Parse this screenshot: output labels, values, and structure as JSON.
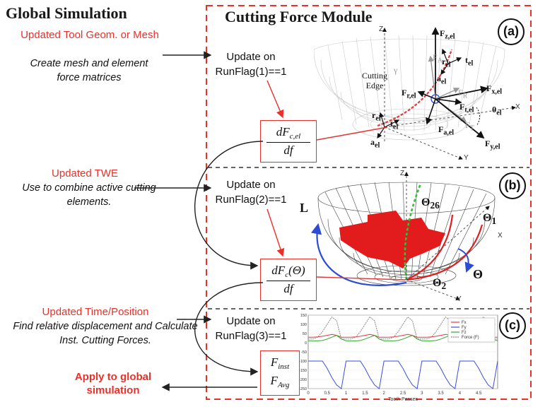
{
  "headers": {
    "global": "Global Simulation",
    "module": "Cutting Force Module"
  },
  "left": {
    "step1_title": "Updated Tool Geom. or Mesh",
    "step1_desc": "Create mesh and element force matrices",
    "step2_title": "Updated TWE",
    "step2_desc": "Use to combine active cutting elements.",
    "step3_title": "Updated Time/Position",
    "step3_desc": "Find relative displacement and Calculate Inst. Cutting Forces.",
    "apply": "Apply to global simulation"
  },
  "updates": [
    {
      "line1": "Update on",
      "line2": "RunFlag(1)==1"
    },
    {
      "line1": "Update on",
      "line2": "RunFlag(2)==1"
    },
    {
      "line1": "Update on",
      "line2": "RunFlag(3)==1"
    }
  ],
  "formulas": {
    "f1_num": "dF",
    "f1_num_sub": "c,el",
    "f1_den": "df",
    "f2_num": "dF",
    "f2_num_sub": "c",
    "f2_num_arg": "(Θ)",
    "f2_den": "df",
    "f3_a": "F",
    "f3_a_sub": "inst",
    "f3_b": "F",
    "f3_b_sub": "Avg"
  },
  "panels": {
    "a": {
      "tag": "(a)",
      "labels": {
        "z": "Z",
        "y_greek": "γ",
        "cutting_edge": "Cutting Edge",
        "fz": "F",
        "fz_sub": "z,el",
        "fa_grey": "F",
        "fa_grey_sub": "A",
        "rel": "r",
        "rel_sub": "el",
        "tel": "t",
        "tel_sub": "el",
        "ael": "a",
        "ael_sub": "el",
        "fr_grey": "F",
        "fr_grey_sub": "R",
        "fx": "F",
        "fx_sub": "x,el",
        "fr": "F",
        "fr_sub": "r,el",
        "ft": "F",
        "ft_sub": "t,el",
        "theta": "θ",
        "theta_sub": "el",
        "ft_grey": "F",
        "ft_grey_sub": "T",
        "fa": "F",
        "fa_sub": "a,el",
        "fy": "F",
        "fy_sub": "y,el",
        "x": "X",
        "y": "Y",
        "r2": "r",
        "r2_sub": "el",
        "t2": "t",
        "t2_sub": "el",
        "a2": "a",
        "a2_sub": "el"
      }
    },
    "b": {
      "tag": "(b)",
      "labels": {
        "z": "Z",
        "theta26": "Θ",
        "theta26_sub": "26",
        "theta1": "Θ",
        "theta1_sub": "1",
        "x": "X",
        "L": "L",
        "theta": "Θ",
        "theta2": "Θ",
        "theta2_sub": "2",
        "y": "Y"
      }
    },
    "c": {
      "tag": "(c)",
      "xlabel": "Tooth Passes",
      "xticks": [
        "0",
        "0.5",
        "1",
        "1.5",
        "2",
        "2.5",
        "3",
        "3.5",
        "4",
        "4.5"
      ],
      "yticks": [
        "150",
        "100",
        "50",
        "0",
        "-50",
        "-100",
        "-150",
        "-200",
        "-250"
      ],
      "legend": [
        "Fx",
        "Fy",
        "Fz",
        "Force (F)"
      ]
    }
  },
  "chart_data": {
    "type": "line",
    "xlabel": "Tooth Passes",
    "ylabel": "",
    "xlim": [
      0,
      5
    ],
    "ylim": [
      -250,
      150
    ],
    "x_step": 0.125,
    "series": [
      {
        "name": "Fx",
        "color": "#e03a3a",
        "values": [
          30,
          30,
          32,
          35,
          40,
          45,
          40,
          30,
          30,
          30,
          32,
          35,
          40,
          45,
          40,
          30,
          30,
          30,
          32,
          35,
          40,
          45,
          40,
          30,
          30,
          30,
          32,
          35,
          40,
          45,
          40,
          30,
          30,
          30,
          32,
          35,
          40,
          45,
          40,
          30,
          30
        ]
      },
      {
        "name": "Fy",
        "color": "#3a4ee0",
        "values": [
          -100,
          -100,
          -100,
          -100,
          -140,
          -190,
          -230,
          -250,
          -100,
          -100,
          -100,
          -100,
          -140,
          -190,
          -230,
          -250,
          -100,
          -100,
          -100,
          -100,
          -140,
          -190,
          -230,
          -250,
          -100,
          -100,
          -100,
          -100,
          -140,
          -190,
          -230,
          -250,
          -100,
          -100,
          -100,
          -100,
          -140,
          -190,
          -230,
          -250,
          -100
        ]
      },
      {
        "name": "Fz",
        "color": "#2fa82f",
        "values": [
          10,
          10,
          10,
          12,
          20,
          30,
          40,
          20,
          10,
          10,
          10,
          12,
          20,
          30,
          40,
          20,
          10,
          10,
          10,
          12,
          20,
          30,
          40,
          20,
          10,
          10,
          10,
          12,
          20,
          30,
          40,
          20,
          10,
          10,
          10,
          12,
          20,
          30,
          40,
          20,
          10
        ]
      },
      {
        "name": "Force (F)",
        "color": "#888888",
        "values": [
          20,
          20,
          30,
          60,
          100,
          140,
          120,
          20,
          20,
          20,
          30,
          60,
          100,
          140,
          120,
          20,
          20,
          20,
          30,
          60,
          100,
          140,
          120,
          20,
          20,
          20,
          30,
          60,
          100,
          140,
          120,
          20,
          20,
          20,
          30,
          60,
          100,
          140,
          120,
          20,
          20
        ]
      }
    ]
  }
}
